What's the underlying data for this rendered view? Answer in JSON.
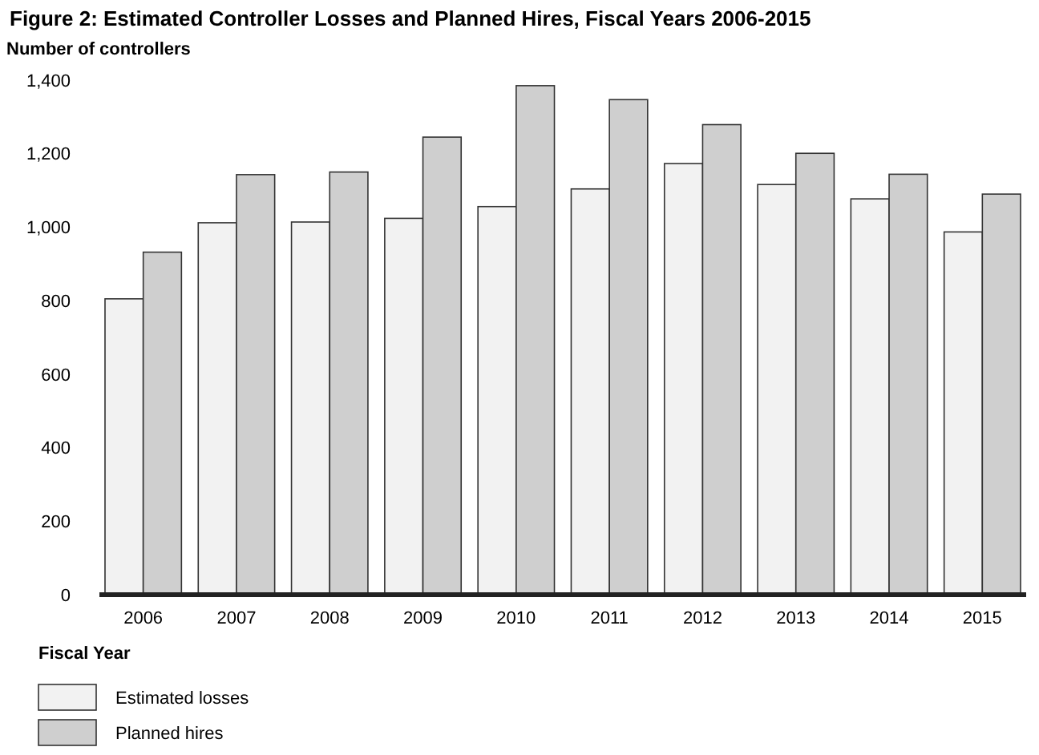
{
  "chart_data": {
    "type": "bar",
    "title": "Figure 2: Estimated Controller Losses and Planned Hires, Fiscal Years 2006-2015",
    "ylabel": "Number of controllers",
    "xlabel": "Fiscal Year",
    "categories": [
      "2006",
      "2007",
      "2008",
      "2009",
      "2010",
      "2011",
      "2012",
      "2013",
      "2014",
      "2015"
    ],
    "series": [
      {
        "name": "Estimated losses",
        "color": "#f2f2f2",
        "values": [
          805,
          1012,
          1014,
          1024,
          1056,
          1104,
          1173,
          1116,
          1077,
          987
        ]
      },
      {
        "name": "Planned hires",
        "color": "#cfcfcf",
        "values": [
          932,
          1143,
          1150,
          1245,
          1385,
          1347,
          1279,
          1201,
          1144,
          1090
        ]
      }
    ],
    "ylim": [
      0,
      1400
    ],
    "yticks": [
      0,
      {
        "value": 200,
        "label": "200"
      },
      {
        "value": 400,
        "label": "400"
      },
      {
        "value": 600,
        "label": "600"
      },
      {
        "value": 800,
        "label": "800"
      },
      {
        "value": 1000,
        "label": "1,000"
      },
      {
        "value": 1200,
        "label": "1,200"
      },
      {
        "value": 1400,
        "label": "1,400"
      }
    ],
    "grid": false,
    "legend": "bottom left"
  }
}
